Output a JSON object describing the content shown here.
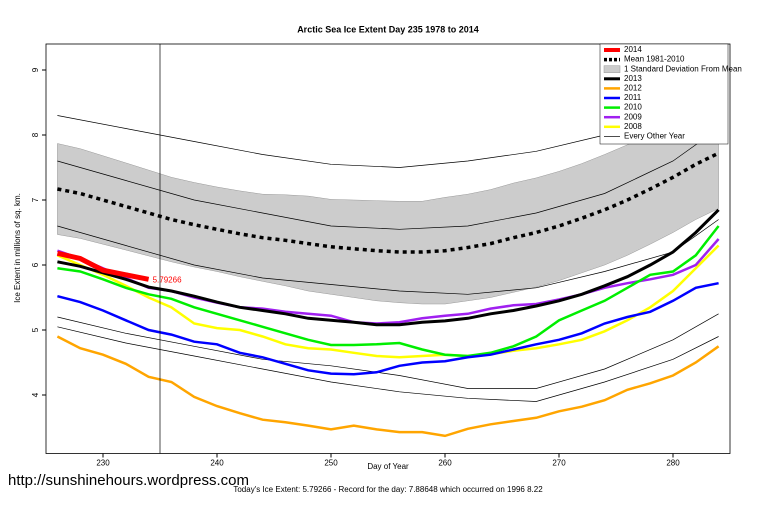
{
  "chart_data": {
    "type": "line",
    "title": "Arctic Sea Ice Extent Day 235 1978 to 2014",
    "x_label": "Day of Year",
    "y_label": "Ice Extent in millions of sq. km.",
    "watermark": "http://sunshinehours.wordpress.com",
    "footer": "Today's Ice Extent: 5.79266  -  Record for the day: 7.88648 which occurred on 1996 8.22",
    "annotation": "5.79266",
    "current_day": 235,
    "xlim": [
      225,
      285
    ],
    "ylim": [
      3.1,
      9.4
    ],
    "xticks": [
      230,
      240,
      250,
      260,
      270,
      280
    ],
    "yticks": [
      4,
      5,
      6,
      7,
      8,
      9
    ],
    "x": [
      226,
      228,
      230,
      232,
      234,
      236,
      238,
      240,
      242,
      244,
      246,
      248,
      250,
      252,
      254,
      256,
      258,
      260,
      262,
      264,
      266,
      268,
      270,
      272,
      274,
      276,
      278,
      280,
      282,
      284
    ],
    "series": [
      {
        "name": "2014",
        "color": "#ff0000",
        "width": 5,
        "values": [
          6.18,
          6.1,
          5.92,
          5.85,
          5.78,
          null,
          null,
          null,
          null,
          null,
          null,
          null,
          null,
          null,
          null,
          null,
          null,
          null,
          null,
          null,
          null,
          null,
          null,
          null,
          null,
          null,
          null,
          null,
          null,
          null
        ]
      },
      {
        "name": "Mean 1981-2010",
        "color": "#000000",
        "width": 3.5,
        "dash": "4 4",
        "values": [
          7.17,
          7.1,
          7.0,
          6.9,
          6.8,
          6.7,
          6.62,
          6.55,
          6.48,
          6.42,
          6.38,
          6.33,
          6.28,
          6.25,
          6.22,
          6.2,
          6.2,
          6.22,
          6.27,
          6.33,
          6.42,
          6.5,
          6.6,
          6.72,
          6.85,
          7.0,
          7.17,
          7.35,
          7.55,
          7.72
        ]
      },
      {
        "name": "1 Standard Deviation From Mean",
        "color": "#cccccc",
        "low": [
          6.47,
          6.41,
          6.32,
          6.23,
          6.14,
          6.05,
          5.97,
          5.9,
          5.82,
          5.75,
          5.68,
          5.6,
          5.55,
          5.5,
          5.45,
          5.42,
          5.4,
          5.4,
          5.45,
          5.5,
          5.58,
          5.66,
          5.76,
          5.88,
          6.0,
          6.15,
          6.32,
          6.5,
          6.7,
          6.87
        ],
        "high": [
          7.87,
          7.79,
          7.68,
          7.57,
          7.46,
          7.35,
          7.27,
          7.2,
          7.14,
          7.09,
          7.08,
          7.06,
          7.01,
          7.0,
          6.99,
          6.98,
          6.98,
          7.04,
          7.09,
          7.16,
          7.26,
          7.34,
          7.44,
          7.56,
          7.7,
          7.85,
          8.02,
          8.2,
          8.4,
          8.57
        ]
      },
      {
        "name": "2013",
        "color": "#000000",
        "width": 3,
        "values": [
          6.05,
          5.98,
          5.88,
          5.78,
          5.66,
          5.6,
          5.52,
          5.43,
          5.35,
          5.3,
          5.25,
          5.18,
          5.15,
          5.12,
          5.08,
          5.08,
          5.12,
          5.14,
          5.18,
          5.25,
          5.3,
          5.37,
          5.45,
          5.55,
          5.68,
          5.82,
          6.0,
          6.2,
          6.5,
          6.85
        ]
      },
      {
        "name": "2012",
        "color": "#ffa500",
        "width": 2.5,
        "values": [
          4.9,
          4.72,
          4.62,
          4.48,
          4.28,
          4.2,
          3.97,
          3.83,
          3.72,
          3.62,
          3.58,
          3.53,
          3.47,
          3.53,
          3.47,
          3.43,
          3.43,
          3.37,
          3.48,
          3.55,
          3.6,
          3.65,
          3.75,
          3.82,
          3.92,
          4.08,
          4.18,
          4.3,
          4.5,
          4.75
        ]
      },
      {
        "name": "2011",
        "color": "#0000ff",
        "width": 2.5,
        "values": [
          5.52,
          5.43,
          5.3,
          5.15,
          5.0,
          4.93,
          4.82,
          4.78,
          4.65,
          4.58,
          4.48,
          4.38,
          4.33,
          4.32,
          4.35,
          4.45,
          4.5,
          4.52,
          4.58,
          4.62,
          4.7,
          4.78,
          4.85,
          4.95,
          5.1,
          5.2,
          5.28,
          5.45,
          5.65,
          5.72
        ]
      },
      {
        "name": "2010",
        "color": "#00ee00",
        "width": 2.5,
        "values": [
          5.95,
          5.9,
          5.78,
          5.65,
          5.55,
          5.48,
          5.35,
          5.25,
          5.15,
          5.05,
          4.95,
          4.85,
          4.77,
          4.77,
          4.78,
          4.8,
          4.7,
          4.62,
          4.6,
          4.65,
          4.75,
          4.9,
          5.15,
          5.3,
          5.45,
          5.65,
          5.85,
          5.9,
          6.15,
          6.6
        ]
      },
      {
        "name": "2009",
        "color": "#a020f0",
        "width": 2.5,
        "values": [
          6.22,
          6.1,
          5.95,
          5.8,
          5.65,
          5.6,
          5.5,
          5.42,
          5.35,
          5.33,
          5.28,
          5.25,
          5.22,
          5.12,
          5.1,
          5.12,
          5.18,
          5.22,
          5.25,
          5.33,
          5.38,
          5.4,
          5.47,
          5.55,
          5.65,
          5.72,
          5.78,
          5.85,
          6.0,
          6.4
        ]
      },
      {
        "name": "2008",
        "color": "#ffff00",
        "width": 2.5,
        "values": [
          6.15,
          6.0,
          5.85,
          5.68,
          5.5,
          5.35,
          5.1,
          5.03,
          5.0,
          4.9,
          4.78,
          4.72,
          4.7,
          4.65,
          4.6,
          4.58,
          4.6,
          4.62,
          4.6,
          4.63,
          4.68,
          4.72,
          4.78,
          4.85,
          4.98,
          5.15,
          5.35,
          5.6,
          5.95,
          6.3
        ]
      }
    ],
    "other_years": {
      "name": "Every Other Year",
      "color": "#000000",
      "x": [
        226,
        232,
        238,
        244,
        250,
        256,
        262,
        268,
        274,
        280,
        284
      ],
      "lines": [
        [
          8.3,
          8.1,
          7.9,
          7.7,
          7.55,
          7.5,
          7.6,
          7.75,
          8.0,
          8.3,
          8.6
        ],
        [
          7.6,
          7.3,
          7.0,
          6.8,
          6.6,
          6.55,
          6.6,
          6.8,
          7.1,
          7.6,
          8.1
        ],
        [
          6.6,
          6.3,
          6.0,
          5.8,
          5.7,
          5.6,
          5.55,
          5.65,
          5.9,
          6.2,
          6.7
        ],
        [
          5.2,
          4.95,
          4.75,
          4.55,
          4.45,
          4.3,
          4.1,
          4.1,
          4.4,
          4.85,
          5.25
        ],
        [
          5.05,
          4.8,
          4.6,
          4.4,
          4.2,
          4.05,
          3.95,
          3.9,
          4.2,
          4.55,
          4.9
        ]
      ]
    }
  }
}
